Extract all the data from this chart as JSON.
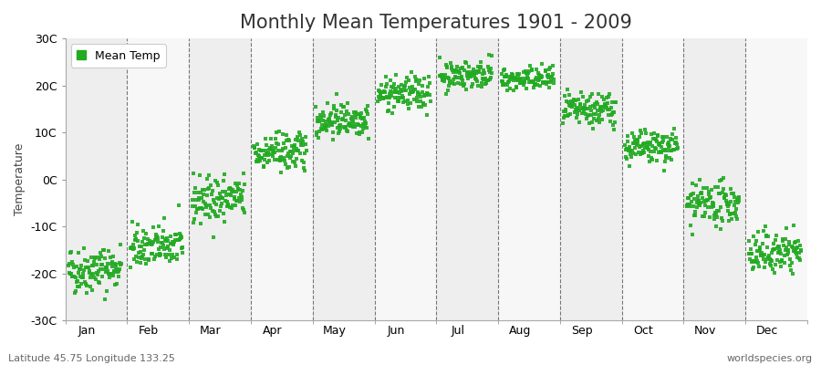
{
  "title": "Monthly Mean Temperatures 1901 - 2009",
  "ylabel": "Temperature",
  "ylim": [
    -30,
    30
  ],
  "yticks": [
    -30,
    -20,
    -10,
    0,
    10,
    20,
    30
  ],
  "ytick_labels": [
    "-30C",
    "-20C",
    "-10C",
    "0C",
    "10C",
    "20C",
    "30C"
  ],
  "months": [
    "Jan",
    "Feb",
    "Mar",
    "Apr",
    "May",
    "Jun",
    "Jul",
    "Aug",
    "Sep",
    "Oct",
    "Nov",
    "Dec"
  ],
  "month_means": [
    -19.5,
    -14.5,
    -4.5,
    5.5,
    12.5,
    18.0,
    22.0,
    21.0,
    14.5,
    6.5,
    -5.5,
    -16.0
  ],
  "month_stds": [
    2.5,
    2.2,
    2.5,
    2.0,
    1.8,
    1.8,
    1.5,
    1.3,
    1.8,
    1.8,
    2.2,
    2.2
  ],
  "month_trends": [
    0.008,
    0.005,
    0.005,
    0.005,
    0.005,
    0.005,
    0.005,
    0.005,
    0.005,
    0.005,
    0.005,
    0.008
  ],
  "n_years": 109,
  "start_year": 1901,
  "dot_color": "#22aa22",
  "dot_size": 5,
  "background_color": "#ffffff",
  "plot_bg_color": "#ffffff",
  "band_even_color": "#eeeeee",
  "band_odd_color": "#f7f7f7",
  "title_fontsize": 15,
  "axis_label_fontsize": 9,
  "tick_fontsize": 9,
  "legend_label": "Mean Temp",
  "subtitle_left": "Latitude 45.75 Longitude 133.25",
  "subtitle_right": "worldspecies.org",
  "subtitle_fontsize": 8,
  "grid_color": "#777777",
  "grid_linestyle": "--",
  "grid_linewidth": 0.8
}
